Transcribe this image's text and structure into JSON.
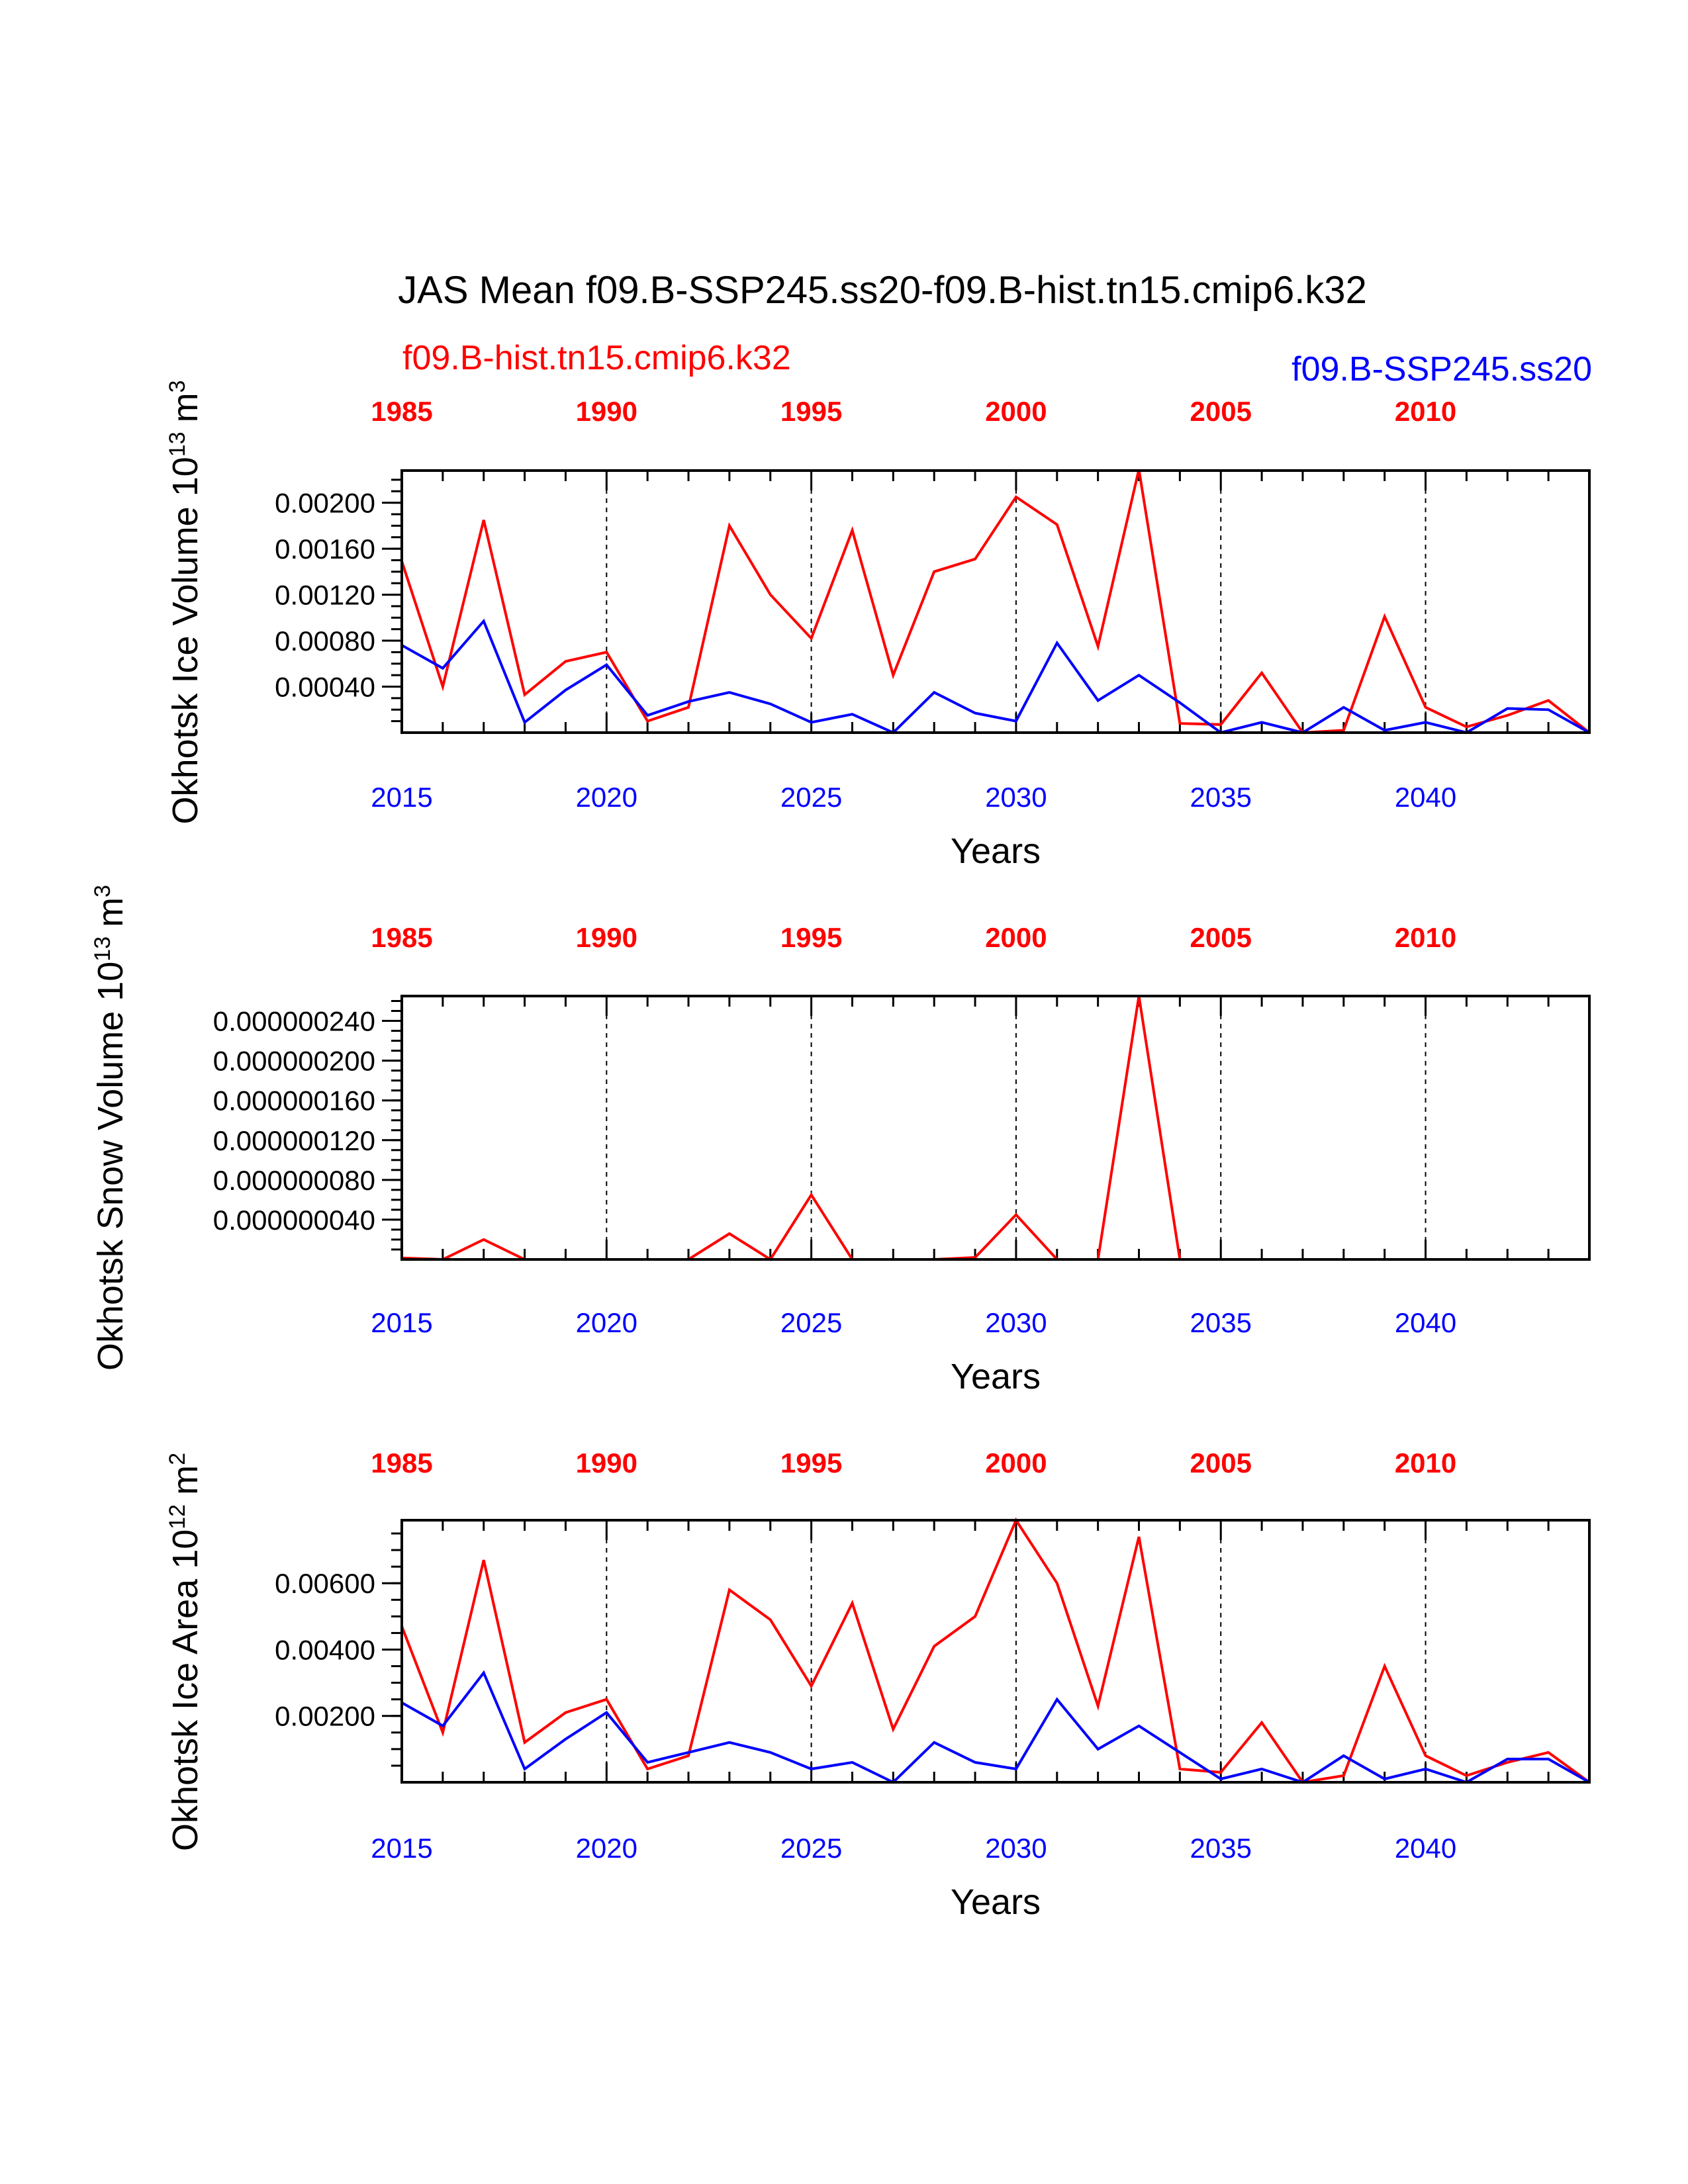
{
  "figure": {
    "title": "JAS Mean f09.B-SSP245.ss20-f09.B-hist.tn15.cmip6.k32",
    "legend_left": "f09.B-hist.tn15.cmip6.k32",
    "legend_right": "f09.B-SSP245.ss20",
    "colors": {
      "hist": "#ff0000",
      "ssp": "#0000ff",
      "axis": "#000000"
    }
  },
  "chart_data": [
    {
      "type": "line",
      "ylabel": "Okhotsk Ice Volume 10",
      "ylabel_exp": "13",
      "ylabel_unit": "m",
      "ylabel_unit_exp": "3",
      "xlabel": "Years",
      "x": [
        2015,
        2016,
        2017,
        2018,
        2019,
        2020,
        2021,
        2022,
        2023,
        2024,
        2025,
        2026,
        2027,
        2028,
        2029,
        2030,
        2031,
        2032,
        2033,
        2034,
        2035,
        2036,
        2037,
        2038,
        2039,
        2040,
        2041,
        2042,
        2043,
        2044
      ],
      "xlim": [
        2015,
        2044
      ],
      "x_ticks": [
        2015,
        2020,
        2025,
        2030,
        2035,
        2040
      ],
      "x_tick_labels": [
        "2015",
        "2020",
        "2025",
        "2030",
        "2035",
        "2040"
      ],
      "x_top_ticks": [
        1985,
        1990,
        1995,
        2000,
        2005,
        2010
      ],
      "x_top_tick_labels": [
        "1985",
        "1990",
        "1995",
        "2000",
        "2005",
        "2010"
      ],
      "ylim": [
        0,
        0.00228
      ],
      "y_ticks": [
        0.0004,
        0.0008,
        0.0012,
        0.0016,
        0.002
      ],
      "y_tick_labels": [
        "0.00040",
        "0.00080",
        "0.00120",
        "0.00160",
        "0.00200"
      ],
      "y_minor_step": 0.0001,
      "series": [
        {
          "name": "f09.B-hist.tn15.cmip6.k32",
          "color": "#ff0000",
          "values": [
            0.00149,
            0.0004,
            0.00185,
            0.00033,
            0.00062,
            0.0007,
            0.0001,
            0.00022,
            0.0018,
            0.0012,
            0.00082,
            0.00176,
            0.0005,
            0.0014,
            0.00151,
            0.00205,
            0.00181,
            0.00075,
            0.00229,
            8e-05,
            7e-05,
            0.00052,
            0.0,
            2e-05,
            0.00101,
            0.00022,
            5e-05,
            0.00015,
            0.00028,
            0.0
          ]
        },
        {
          "name": "f09.B-SSP245.ss20",
          "color": "#0000ff",
          "values": [
            0.00076,
            0.00056,
            0.00097,
            9e-05,
            0.00037,
            0.00059,
            0.00015,
            0.00027,
            0.00035,
            0.00025,
            9e-05,
            0.00016,
            0.0,
            0.00035,
            0.00017,
            0.0001,
            0.00078,
            0.00028,
            0.0005,
            0.00026,
            0.0,
            9e-05,
            0.0,
            0.00022,
            2e-05,
            9e-05,
            0.0,
            0.00021,
            0.0002,
            0.0
          ]
        }
      ]
    },
    {
      "type": "line",
      "ylabel": "Okhotsk Snow Volume 10",
      "ylabel_exp": "13",
      "ylabel_unit": "m",
      "ylabel_unit_exp": "3",
      "xlabel": "Years",
      "x": [
        2015,
        2016,
        2017,
        2018,
        2019,
        2020,
        2021,
        2022,
        2023,
        2024,
        2025,
        2026,
        2027,
        2028,
        2029,
        2030,
        2031,
        2032,
        2033,
        2034,
        2035,
        2036,
        2037,
        2038,
        2039,
        2040,
        2041,
        2042,
        2043,
        2044
      ],
      "xlim": [
        2015,
        2044
      ],
      "x_ticks": [
        2015,
        2020,
        2025,
        2030,
        2035,
        2040
      ],
      "x_tick_labels": [
        "2015",
        "2020",
        "2025",
        "2030",
        "2035",
        "2040"
      ],
      "x_top_ticks": [
        1985,
        1990,
        1995,
        2000,
        2005,
        2010
      ],
      "x_top_tick_labels": [
        "1985",
        "1990",
        "1995",
        "2000",
        "2005",
        "2010"
      ],
      "ylim": [
        0,
        2.65e-07
      ],
      "y_ticks": [
        4e-08,
        8e-08,
        1.2e-07,
        1.6e-07,
        2e-07,
        2.4e-07
      ],
      "y_tick_labels": [
        "0.000000040",
        "0.000000080",
        "0.000000120",
        "0.000000160",
        "0.000000200",
        "0.000000240"
      ],
      "y_minor_step": 1e-08,
      "series": [
        {
          "name": "f09.B-hist.tn15.cmip6.k32",
          "color": "#ff0000",
          "values": [
            1.5e-09,
            0.0,
            2e-08,
            0.0,
            0.0,
            0.0,
            0.0,
            0.0,
            2.6e-08,
            0.0,
            6.5e-08,
            0.0,
            0.0,
            0.0,
            2e-09,
            4.5e-08,
            0.0,
            0.0,
            2.65e-07,
            0.0,
            0.0,
            0.0,
            0.0,
            0.0,
            0.0,
            0.0,
            0.0,
            0.0,
            0.0,
            0.0
          ]
        },
        {
          "name": "f09.B-SSP245.ss20",
          "color": "#0000ff",
          "values": [
            0.0,
            0.0,
            0.0,
            0.0,
            0.0,
            0.0,
            0.0,
            0.0,
            0.0,
            0.0,
            0.0,
            0.0,
            0.0,
            0.0,
            0.0,
            0.0,
            0.0,
            0.0,
            0.0,
            0.0,
            0.0,
            0.0,
            0.0,
            0.0,
            0.0,
            0.0,
            0.0,
            0.0,
            0.0,
            0.0
          ]
        }
      ]
    },
    {
      "type": "line",
      "ylabel": "Okhotsk Ice Area 10",
      "ylabel_exp": "12",
      "ylabel_unit": "m",
      "ylabel_unit_exp": "2",
      "xlabel": "Years",
      "x": [
        2015,
        2016,
        2017,
        2018,
        2019,
        2020,
        2021,
        2022,
        2023,
        2024,
        2025,
        2026,
        2027,
        2028,
        2029,
        2030,
        2031,
        2032,
        2033,
        2034,
        2035,
        2036,
        2037,
        2038,
        2039,
        2040,
        2041,
        2042,
        2043,
        2044
      ],
      "xlim": [
        2015,
        2044
      ],
      "x_ticks": [
        2015,
        2020,
        2025,
        2030,
        2035,
        2040
      ],
      "x_tick_labels": [
        "2015",
        "2020",
        "2025",
        "2030",
        "2035",
        "2040"
      ],
      "x_top_ticks": [
        1985,
        1990,
        1995,
        2000,
        2005,
        2010
      ],
      "x_top_tick_labels": [
        "1985",
        "1990",
        "1995",
        "2000",
        "2005",
        "2010"
      ],
      "ylim": [
        0,
        0.0079
      ],
      "y_ticks": [
        0.002,
        0.004,
        0.006
      ],
      "y_tick_labels": [
        "0.00200",
        "0.00400",
        "0.00600"
      ],
      "y_minor_step": 0.0005,
      "series": [
        {
          "name": "f09.B-hist.tn15.cmip6.k32",
          "color": "#ff0000",
          "values": [
            0.0047,
            0.0015,
            0.0067,
            0.0012,
            0.0021,
            0.0025,
            0.0004,
            0.0008,
            0.0058,
            0.0049,
            0.0029,
            0.0054,
            0.0016,
            0.0041,
            0.005,
            0.0079,
            0.006,
            0.0023,
            0.0074,
            0.0004,
            0.0003,
            0.0018,
            0.0,
            0.0002,
            0.0035,
            0.0008,
            0.0002,
            0.0006,
            0.0009,
            0.0
          ]
        },
        {
          "name": "f09.B-SSP245.ss20",
          "color": "#0000ff",
          "values": [
            0.0024,
            0.0017,
            0.0033,
            0.0004,
            0.0013,
            0.0021,
            0.0006,
            0.0009,
            0.0012,
            0.0009,
            0.0004,
            0.0006,
            0.0,
            0.0012,
            0.0006,
            0.0004,
            0.0025,
            0.001,
            0.0017,
            0.0009,
            0.0001,
            0.0004,
            0.0,
            0.0008,
            0.0001,
            0.0004,
            0.0,
            0.0007,
            0.0007,
            0.0
          ]
        }
      ]
    }
  ]
}
